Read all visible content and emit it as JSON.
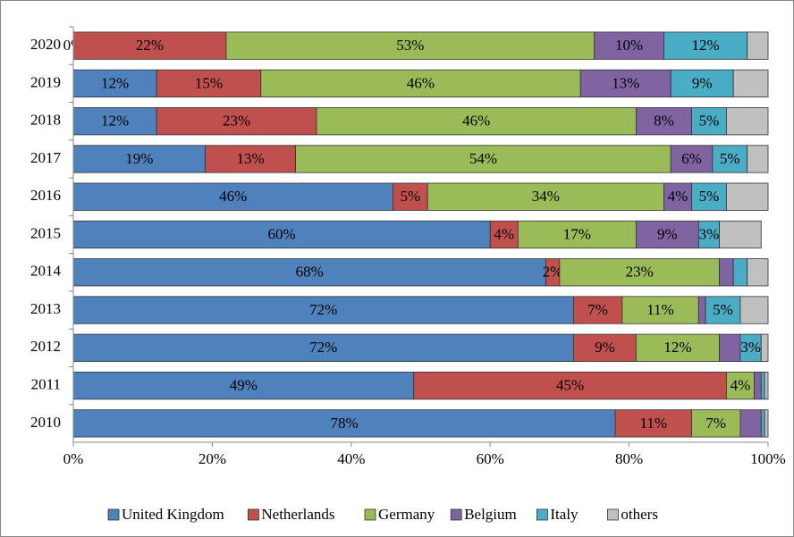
{
  "chart_data": {
    "type": "bar",
    "orientation": "horizontal",
    "stacked": true,
    "categories": [
      "2020",
      "2019",
      "2018",
      "2017",
      "2016",
      "2015",
      "2014",
      "2013",
      "2012",
      "2011",
      "2010"
    ],
    "series": [
      {
        "name": "United Kingdom",
        "color": "#4f81bd",
        "values": [
          0,
          12,
          12,
          19,
          46,
          60,
          68,
          72,
          72,
          49,
          78
        ],
        "value_labels": [
          "0%",
          "12%",
          "12%",
          "19%",
          "46%",
          "60%",
          "68%",
          "72%",
          "72%",
          "49%",
          "78%"
        ]
      },
      {
        "name": "Netherlands",
        "color": "#c0504d",
        "values": [
          22,
          15,
          23,
          13,
          5,
          4,
          2,
          7,
          9,
          45,
          11
        ],
        "value_labels": [
          "22%",
          "15%",
          "23%",
          "13%",
          "5%",
          "4%",
          "2%",
          "7%",
          "9%",
          "45%",
          "11%"
        ]
      },
      {
        "name": "Germany",
        "color": "#9bbb59",
        "values": [
          53,
          46,
          46,
          54,
          34,
          17,
          23,
          11,
          12,
          4,
          7
        ],
        "value_labels": [
          "53%",
          "46%",
          "46%",
          "54%",
          "34%",
          "17%",
          "23%",
          "11%",
          "12%",
          "4%",
          "7%"
        ]
      },
      {
        "name": "Belgium",
        "color": "#8064a2",
        "values": [
          10,
          13,
          8,
          6,
          4,
          9,
          2,
          1,
          3,
          1,
          3
        ],
        "value_labels": [
          "10%",
          "13%",
          "8%",
          "6%",
          "4%",
          "9%",
          null,
          null,
          null,
          null,
          null
        ]
      },
      {
        "name": "Italy",
        "color": "#4bacc6",
        "values": [
          12,
          9,
          5,
          5,
          5,
          3,
          2,
          5,
          3,
          0.5,
          0.5
        ],
        "value_labels": [
          "12%",
          "9%",
          "5%",
          "5%",
          "5%",
          "3%",
          null,
          "5%",
          "3%",
          null,
          null
        ]
      },
      {
        "name": "others",
        "color": "#c0c0c0",
        "values": [
          3,
          5,
          6,
          3,
          6,
          6,
          3,
          4,
          1,
          0.5,
          0.5
        ],
        "value_labels": [
          null,
          null,
          null,
          null,
          null,
          null,
          null,
          null,
          null,
          null,
          null
        ]
      }
    ],
    "xlim": [
      0,
      100
    ],
    "xticks": [
      {
        "value": 0,
        "label": "0%"
      },
      {
        "value": 20,
        "label": "20%"
      },
      {
        "value": 40,
        "label": "40%"
      },
      {
        "value": 60,
        "label": "60%"
      },
      {
        "value": 80,
        "label": "80%"
      },
      {
        "value": 100,
        "label": "100%"
      }
    ],
    "legend": "bottom"
  }
}
